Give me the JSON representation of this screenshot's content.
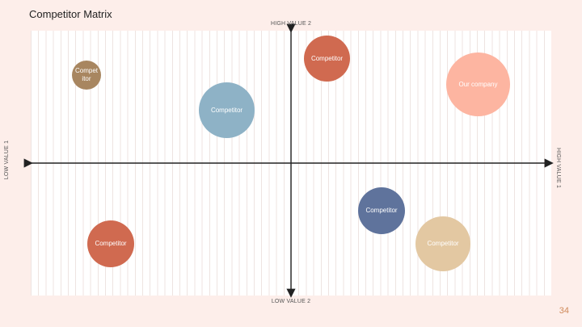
{
  "slide": {
    "title": "Competitor Matrix",
    "page_number": "34"
  },
  "axes": {
    "top": "HIGH VALUE 2",
    "bottom": "LOW VALUE 2",
    "left": "LOW VALUE 1",
    "right": "HIGH VALUE 1"
  },
  "bubbles": [
    {
      "label": "Compet\nitor",
      "color": "#a88660"
    },
    {
      "label": "Competitor",
      "color": "#d06a50"
    },
    {
      "label": "Our company",
      "color": "#fdb5a1"
    },
    {
      "label": "Competitor",
      "color": "#8eb2c6"
    },
    {
      "label": "Competitor",
      "color": "#5f739c"
    },
    {
      "label": "Competitor",
      "color": "#d06a50"
    },
    {
      "label": "Competitor",
      "color": "#e3c8a2"
    }
  ],
  "colors": {
    "background": "#fdeeea",
    "axis": "#222222",
    "page_number": "#d08a5a"
  }
}
